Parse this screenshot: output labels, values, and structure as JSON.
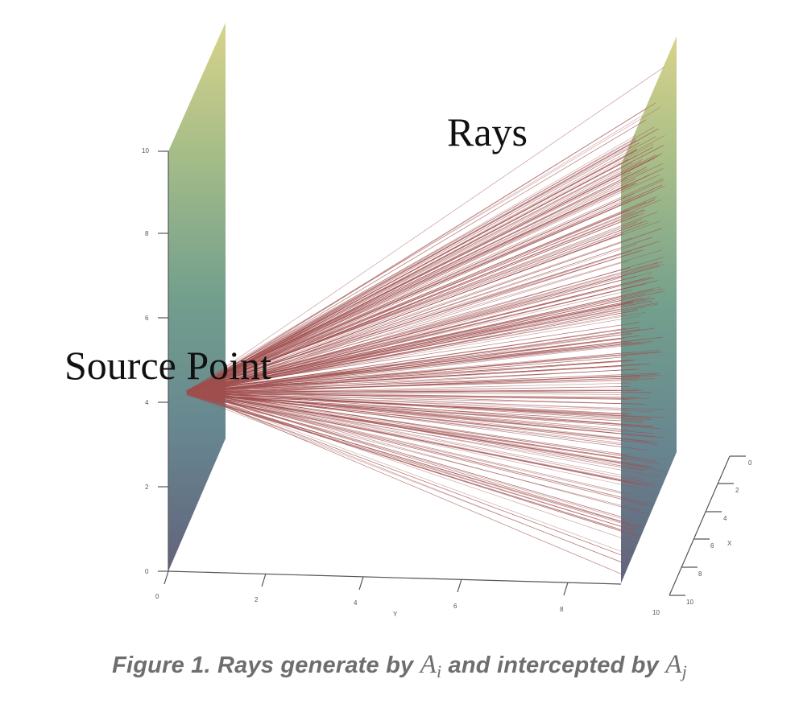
{
  "labels": {
    "rays": "Rays",
    "source_point": "Source Point"
  },
  "axes": {
    "vertical_ticks": [
      "0",
      "2",
      "4",
      "6",
      "8",
      "10"
    ],
    "y_ticks": [
      "0",
      "2",
      "4",
      "6",
      "8",
      "10"
    ],
    "y_label": "Y",
    "x_ticks": [
      "0",
      "2",
      "4",
      "6",
      "8",
      "10"
    ],
    "x_label": "X"
  },
  "caption": {
    "prefix": "Figure 1. Rays generate by ",
    "source_symbol": "A",
    "source_sub": "i",
    "middle": " and intercepted by ",
    "target_symbol": "A",
    "target_sub": "j"
  },
  "colors": {
    "ray": "#a04e4e",
    "panel_top": "#d6d184",
    "panel_mid": "#6b9a87",
    "panel_bottom": "#5a5a74"
  }
}
